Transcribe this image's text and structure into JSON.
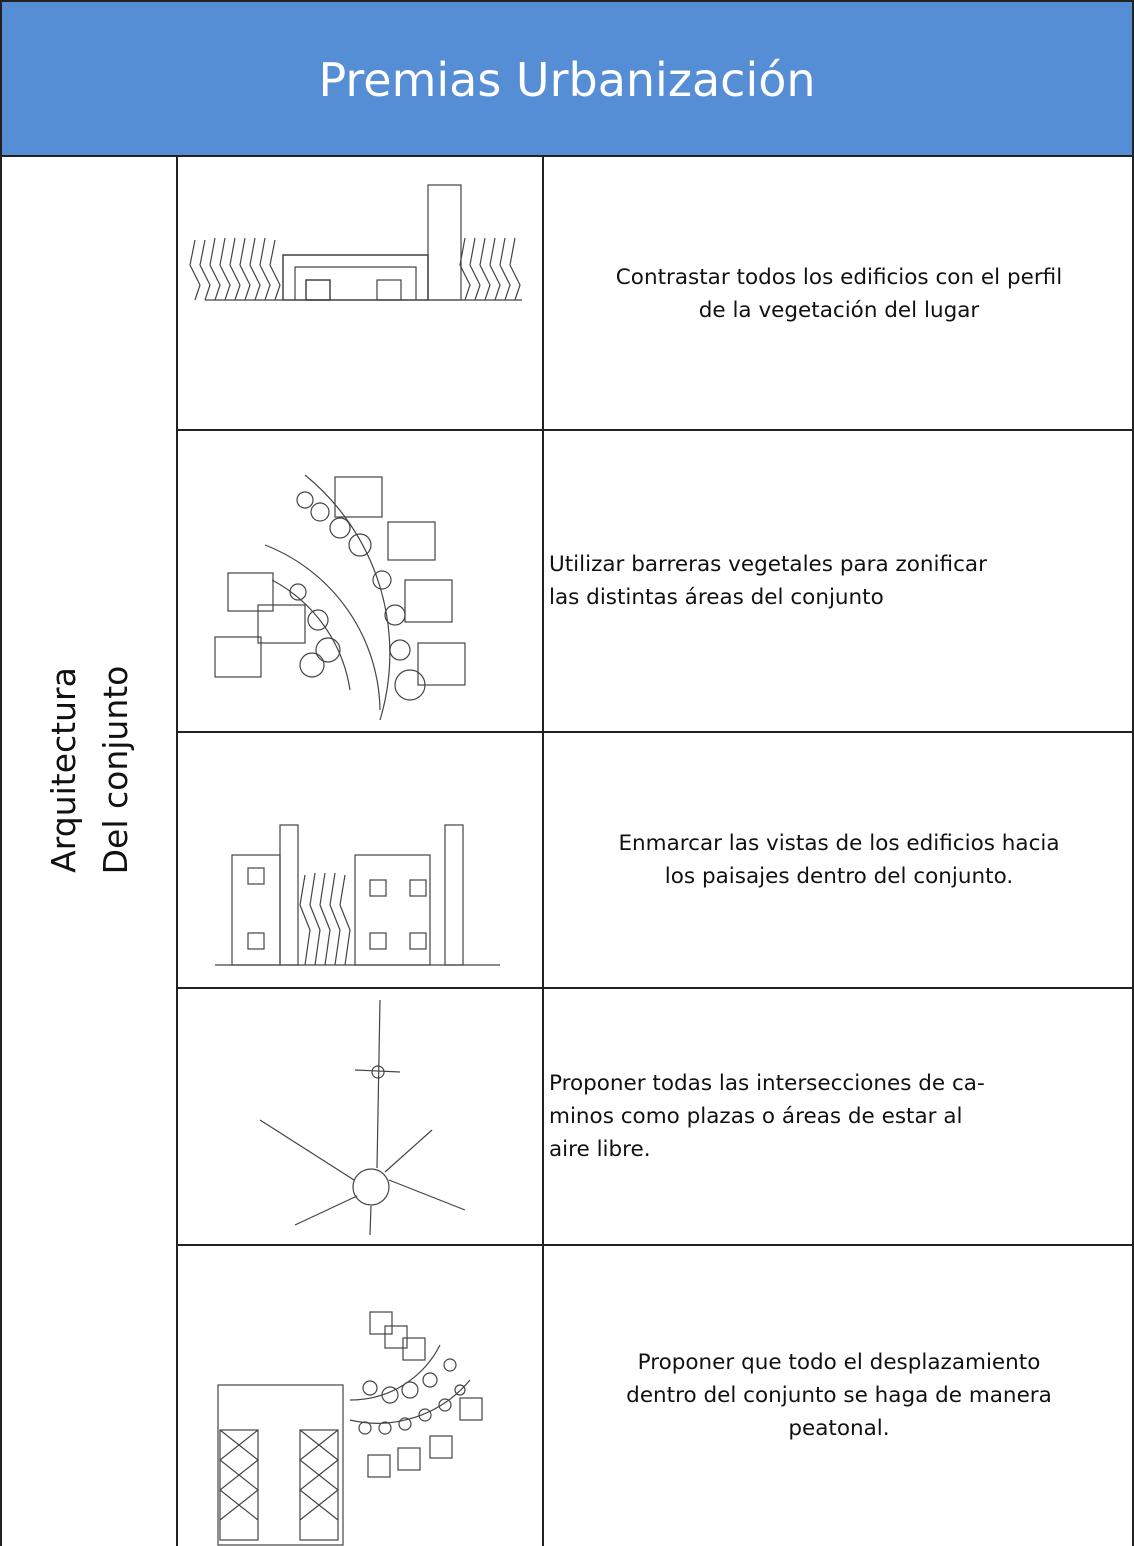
{
  "header": {
    "title": "Premias Urbanización"
  },
  "side_label": {
    "lines": [
      "Arquitectura",
      "Del conjunto"
    ]
  },
  "rows": [
    {
      "align": "center",
      "lines": [
        "Contrastar  todos  los  edificios  con el  perfil",
        "de la  vegetación del  lugar"
      ]
    },
    {
      "align": "left",
      "lines": [
        "Utilizar  barreras  vegetales  para  zonificar",
        "las  distintas  áreas del  conjunto"
      ]
    },
    {
      "align": "center",
      "lines": [
        "Enmarcar  las  vistas de los  edificios  hacia",
        "los  paisajes  dentro  del  conjunto."
      ]
    },
    {
      "align": "left",
      "lines": [
        "Proponer  todas  las  intersecciones de  ca-",
        "minos  como plazas  o  áreas  de  estar al",
        "aire libre."
      ]
    },
    {
      "align": "center",
      "lines": [
        "Proponer  que  todo  el  desplazamiento",
        "dentro del  conjunto se  haga de  manera",
        "peatonal."
      ]
    }
  ]
}
